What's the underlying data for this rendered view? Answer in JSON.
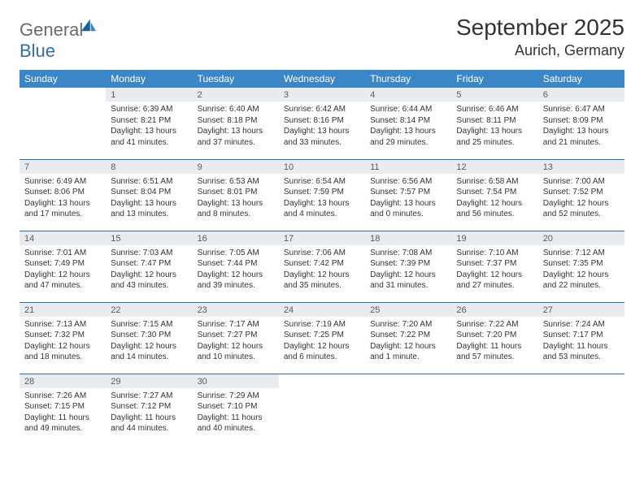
{
  "brand": {
    "word1": "General",
    "word2": "Blue"
  },
  "colors": {
    "header_bg": "#3b86c6",
    "header_text": "#ffffff",
    "daynum_bg": "#e9ecef",
    "row_border": "#2f6fa8",
    "logo_gray": "#6b6b6b",
    "logo_blue": "#2f6fa8",
    "text": "#333333",
    "background": "#ffffff"
  },
  "title": "September 2025",
  "location": "Aurich, Germany",
  "weekdays": [
    "Sunday",
    "Monday",
    "Tuesday",
    "Wednesday",
    "Thursday",
    "Friday",
    "Saturday"
  ],
  "weeks": [
    [
      {
        "day": "",
        "sunrise": "",
        "sunset": "",
        "daylight": ""
      },
      {
        "day": "1",
        "sunrise": "Sunrise: 6:39 AM",
        "sunset": "Sunset: 8:21 PM",
        "daylight": "Daylight: 13 hours and 41 minutes."
      },
      {
        "day": "2",
        "sunrise": "Sunrise: 6:40 AM",
        "sunset": "Sunset: 8:18 PM",
        "daylight": "Daylight: 13 hours and 37 minutes."
      },
      {
        "day": "3",
        "sunrise": "Sunrise: 6:42 AM",
        "sunset": "Sunset: 8:16 PM",
        "daylight": "Daylight: 13 hours and 33 minutes."
      },
      {
        "day": "4",
        "sunrise": "Sunrise: 6:44 AM",
        "sunset": "Sunset: 8:14 PM",
        "daylight": "Daylight: 13 hours and 29 minutes."
      },
      {
        "day": "5",
        "sunrise": "Sunrise: 6:46 AM",
        "sunset": "Sunset: 8:11 PM",
        "daylight": "Daylight: 13 hours and 25 minutes."
      },
      {
        "day": "6",
        "sunrise": "Sunrise: 6:47 AM",
        "sunset": "Sunset: 8:09 PM",
        "daylight": "Daylight: 13 hours and 21 minutes."
      }
    ],
    [
      {
        "day": "7",
        "sunrise": "Sunrise: 6:49 AM",
        "sunset": "Sunset: 8:06 PM",
        "daylight": "Daylight: 13 hours and 17 minutes."
      },
      {
        "day": "8",
        "sunrise": "Sunrise: 6:51 AM",
        "sunset": "Sunset: 8:04 PM",
        "daylight": "Daylight: 13 hours and 13 minutes."
      },
      {
        "day": "9",
        "sunrise": "Sunrise: 6:53 AM",
        "sunset": "Sunset: 8:01 PM",
        "daylight": "Daylight: 13 hours and 8 minutes."
      },
      {
        "day": "10",
        "sunrise": "Sunrise: 6:54 AM",
        "sunset": "Sunset: 7:59 PM",
        "daylight": "Daylight: 13 hours and 4 minutes."
      },
      {
        "day": "11",
        "sunrise": "Sunrise: 6:56 AM",
        "sunset": "Sunset: 7:57 PM",
        "daylight": "Daylight: 13 hours and 0 minutes."
      },
      {
        "day": "12",
        "sunrise": "Sunrise: 6:58 AM",
        "sunset": "Sunset: 7:54 PM",
        "daylight": "Daylight: 12 hours and 56 minutes."
      },
      {
        "day": "13",
        "sunrise": "Sunrise: 7:00 AM",
        "sunset": "Sunset: 7:52 PM",
        "daylight": "Daylight: 12 hours and 52 minutes."
      }
    ],
    [
      {
        "day": "14",
        "sunrise": "Sunrise: 7:01 AM",
        "sunset": "Sunset: 7:49 PM",
        "daylight": "Daylight: 12 hours and 47 minutes."
      },
      {
        "day": "15",
        "sunrise": "Sunrise: 7:03 AM",
        "sunset": "Sunset: 7:47 PM",
        "daylight": "Daylight: 12 hours and 43 minutes."
      },
      {
        "day": "16",
        "sunrise": "Sunrise: 7:05 AM",
        "sunset": "Sunset: 7:44 PM",
        "daylight": "Daylight: 12 hours and 39 minutes."
      },
      {
        "day": "17",
        "sunrise": "Sunrise: 7:06 AM",
        "sunset": "Sunset: 7:42 PM",
        "daylight": "Daylight: 12 hours and 35 minutes."
      },
      {
        "day": "18",
        "sunrise": "Sunrise: 7:08 AM",
        "sunset": "Sunset: 7:39 PM",
        "daylight": "Daylight: 12 hours and 31 minutes."
      },
      {
        "day": "19",
        "sunrise": "Sunrise: 7:10 AM",
        "sunset": "Sunset: 7:37 PM",
        "daylight": "Daylight: 12 hours and 27 minutes."
      },
      {
        "day": "20",
        "sunrise": "Sunrise: 7:12 AM",
        "sunset": "Sunset: 7:35 PM",
        "daylight": "Daylight: 12 hours and 22 minutes."
      }
    ],
    [
      {
        "day": "21",
        "sunrise": "Sunrise: 7:13 AM",
        "sunset": "Sunset: 7:32 PM",
        "daylight": "Daylight: 12 hours and 18 minutes."
      },
      {
        "day": "22",
        "sunrise": "Sunrise: 7:15 AM",
        "sunset": "Sunset: 7:30 PM",
        "daylight": "Daylight: 12 hours and 14 minutes."
      },
      {
        "day": "23",
        "sunrise": "Sunrise: 7:17 AM",
        "sunset": "Sunset: 7:27 PM",
        "daylight": "Daylight: 12 hours and 10 minutes."
      },
      {
        "day": "24",
        "sunrise": "Sunrise: 7:19 AM",
        "sunset": "Sunset: 7:25 PM",
        "daylight": "Daylight: 12 hours and 6 minutes."
      },
      {
        "day": "25",
        "sunrise": "Sunrise: 7:20 AM",
        "sunset": "Sunset: 7:22 PM",
        "daylight": "Daylight: 12 hours and 1 minute."
      },
      {
        "day": "26",
        "sunrise": "Sunrise: 7:22 AM",
        "sunset": "Sunset: 7:20 PM",
        "daylight": "Daylight: 11 hours and 57 minutes."
      },
      {
        "day": "27",
        "sunrise": "Sunrise: 7:24 AM",
        "sunset": "Sunset: 7:17 PM",
        "daylight": "Daylight: 11 hours and 53 minutes."
      }
    ],
    [
      {
        "day": "28",
        "sunrise": "Sunrise: 7:26 AM",
        "sunset": "Sunset: 7:15 PM",
        "daylight": "Daylight: 11 hours and 49 minutes."
      },
      {
        "day": "29",
        "sunrise": "Sunrise: 7:27 AM",
        "sunset": "Sunset: 7:12 PM",
        "daylight": "Daylight: 11 hours and 44 minutes."
      },
      {
        "day": "30",
        "sunrise": "Sunrise: 7:29 AM",
        "sunset": "Sunset: 7:10 PM",
        "daylight": "Daylight: 11 hours and 40 minutes."
      },
      {
        "day": "",
        "sunrise": "",
        "sunset": "",
        "daylight": ""
      },
      {
        "day": "",
        "sunrise": "",
        "sunset": "",
        "daylight": ""
      },
      {
        "day": "",
        "sunrise": "",
        "sunset": "",
        "daylight": ""
      },
      {
        "day": "",
        "sunrise": "",
        "sunset": "",
        "daylight": ""
      }
    ]
  ]
}
